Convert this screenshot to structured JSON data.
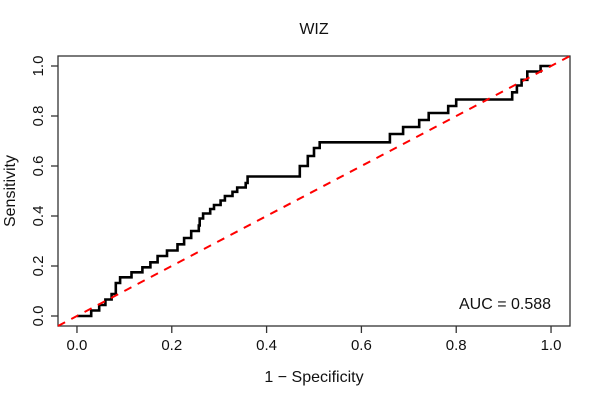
{
  "chart_data": {
    "type": "line",
    "subtype": "roc-step-curve",
    "title": "WIZ",
    "xlabel": "1 − Specificity",
    "ylabel": "Sensitivity",
    "xlim": [
      0,
      1
    ],
    "ylim": [
      0,
      1
    ],
    "axis_expansion": 0.04,
    "grid": false,
    "legend": "none",
    "box": true,
    "x_ticks": {
      "values": [
        0.0,
        0.2,
        0.4,
        0.6,
        0.8,
        1.0
      ],
      "labels": [
        "0.0",
        "0.2",
        "0.4",
        "0.6",
        "0.8",
        "1.0"
      ]
    },
    "y_ticks": {
      "values": [
        0.0,
        0.2,
        0.4,
        0.6,
        0.8,
        1.0
      ],
      "labels": [
        "0.0",
        "0.2",
        "0.4",
        "0.6",
        "0.8",
        "1.0"
      ]
    },
    "annotation": {
      "text": "AUC = 0.588",
      "x": 0.9,
      "y": 0.048
    },
    "auc_value": 0.588,
    "colors": {
      "roc_curve": "#000000",
      "chance_line": "#FF0000",
      "axis": "#333333"
    },
    "series": [
      {
        "name": "ROC curve",
        "color": "#000000",
        "line_width": 2.6,
        "style": "solid",
        "points": [
          [
            0.0,
            0.0
          ],
          [
            0.03,
            0.0
          ],
          [
            0.03,
            0.022
          ],
          [
            0.047,
            0.022
          ],
          [
            0.047,
            0.044
          ],
          [
            0.06,
            0.044
          ],
          [
            0.06,
            0.066
          ],
          [
            0.073,
            0.066
          ],
          [
            0.073,
            0.088
          ],
          [
            0.082,
            0.088
          ],
          [
            0.082,
            0.132
          ],
          [
            0.091,
            0.132
          ],
          [
            0.091,
            0.155
          ],
          [
            0.115,
            0.155
          ],
          [
            0.115,
            0.175
          ],
          [
            0.138,
            0.175
          ],
          [
            0.138,
            0.195
          ],
          [
            0.155,
            0.195
          ],
          [
            0.155,
            0.215
          ],
          [
            0.17,
            0.215
          ],
          [
            0.17,
            0.24
          ],
          [
            0.19,
            0.24
          ],
          [
            0.19,
            0.262
          ],
          [
            0.212,
            0.262
          ],
          [
            0.212,
            0.287
          ],
          [
            0.226,
            0.287
          ],
          [
            0.226,
            0.312
          ],
          [
            0.241,
            0.312
          ],
          [
            0.241,
            0.34
          ],
          [
            0.257,
            0.34
          ],
          [
            0.257,
            0.362
          ],
          [
            0.259,
            0.362
          ],
          [
            0.259,
            0.39
          ],
          [
            0.266,
            0.39
          ],
          [
            0.266,
            0.41
          ],
          [
            0.281,
            0.41
          ],
          [
            0.281,
            0.428
          ],
          [
            0.289,
            0.428
          ],
          [
            0.289,
            0.444
          ],
          [
            0.303,
            0.444
          ],
          [
            0.303,
            0.462
          ],
          [
            0.312,
            0.462
          ],
          [
            0.312,
            0.48
          ],
          [
            0.328,
            0.48
          ],
          [
            0.328,
            0.497
          ],
          [
            0.338,
            0.497
          ],
          [
            0.338,
            0.514
          ],
          [
            0.356,
            0.514
          ],
          [
            0.356,
            0.532
          ],
          [
            0.36,
            0.532
          ],
          [
            0.36,
            0.558
          ],
          [
            0.47,
            0.558
          ],
          [
            0.47,
            0.6
          ],
          [
            0.487,
            0.6
          ],
          [
            0.487,
            0.64
          ],
          [
            0.5,
            0.64
          ],
          [
            0.5,
            0.672
          ],
          [
            0.512,
            0.672
          ],
          [
            0.512,
            0.695
          ],
          [
            0.66,
            0.695
          ],
          [
            0.66,
            0.728
          ],
          [
            0.688,
            0.728
          ],
          [
            0.688,
            0.756
          ],
          [
            0.722,
            0.756
          ],
          [
            0.722,
            0.784
          ],
          [
            0.742,
            0.784
          ],
          [
            0.742,
            0.812
          ],
          [
            0.783,
            0.812
          ],
          [
            0.783,
            0.84
          ],
          [
            0.8,
            0.84
          ],
          [
            0.8,
            0.866
          ],
          [
            0.918,
            0.866
          ],
          [
            0.918,
            0.895
          ],
          [
            0.928,
            0.895
          ],
          [
            0.928,
            0.922
          ],
          [
            0.938,
            0.922
          ],
          [
            0.938,
            0.945
          ],
          [
            0.95,
            0.945
          ],
          [
            0.95,
            0.978
          ],
          [
            0.978,
            0.978
          ],
          [
            0.978,
            1.0
          ],
          [
            1.0,
            1.0
          ]
        ]
      },
      {
        "name": "chance diagonal",
        "color": "#FF0000",
        "line_width": 2,
        "style": "dashed",
        "dash": "8,7",
        "points": [
          [
            -0.04,
            -0.04
          ],
          [
            1.04,
            1.04
          ]
        ]
      }
    ]
  }
}
